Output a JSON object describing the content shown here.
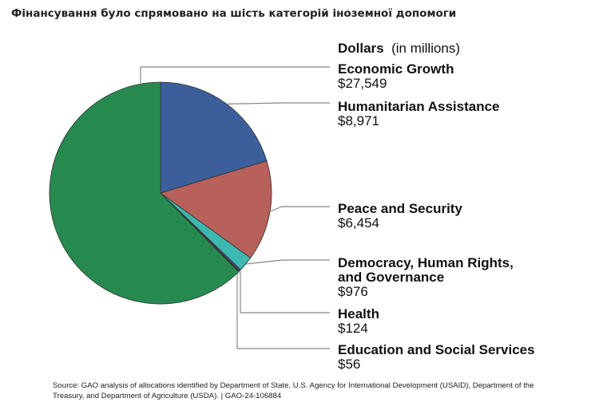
{
  "headline": "Фінансування було спрямовано на шість категорій іноземної допомоги",
  "chart_data": {
    "type": "pie",
    "title": "Dollars",
    "unit_label": "(in millions)",
    "slices": [
      {
        "name": "Humanitarian Assistance",
        "value": 8971,
        "label": "$8,971",
        "color": "#3a5f9a",
        "name_lines": [
          "Humanitarian Assistance"
        ]
      },
      {
        "name": "Peace and Security",
        "value": 6454,
        "label": "$6,454",
        "color": "#b8605a",
        "name_lines": [
          "Peace and Security"
        ]
      },
      {
        "name": "Democracy, Human Rights, and Governance",
        "value": 976,
        "label": "$976",
        "color": "#3cb8b0",
        "name_lines": [
          "Democracy, Human Rights,",
          "and Governance"
        ]
      },
      {
        "name": "Health",
        "value": 124,
        "label": "$124",
        "color": "#5a3d7a",
        "name_lines": [
          "Health"
        ]
      },
      {
        "name": "Education and Social Services",
        "value": 56,
        "label": "$56",
        "color": "#2a2a2a",
        "name_lines": [
          "Education and Social Services"
        ]
      },
      {
        "name": "Economic Growth",
        "value": 27549,
        "label": "$27,549",
        "color": "#268a4e",
        "name_lines": [
          "Economic Growth"
        ]
      }
    ]
  },
  "source_note": "Source: GAO analysis of allocations identified by Department of State, U.S. Agency for International Development (USAID), Department of the Treasury, and Department of Agriculture (USDA).  |  GAO-24-106884"
}
